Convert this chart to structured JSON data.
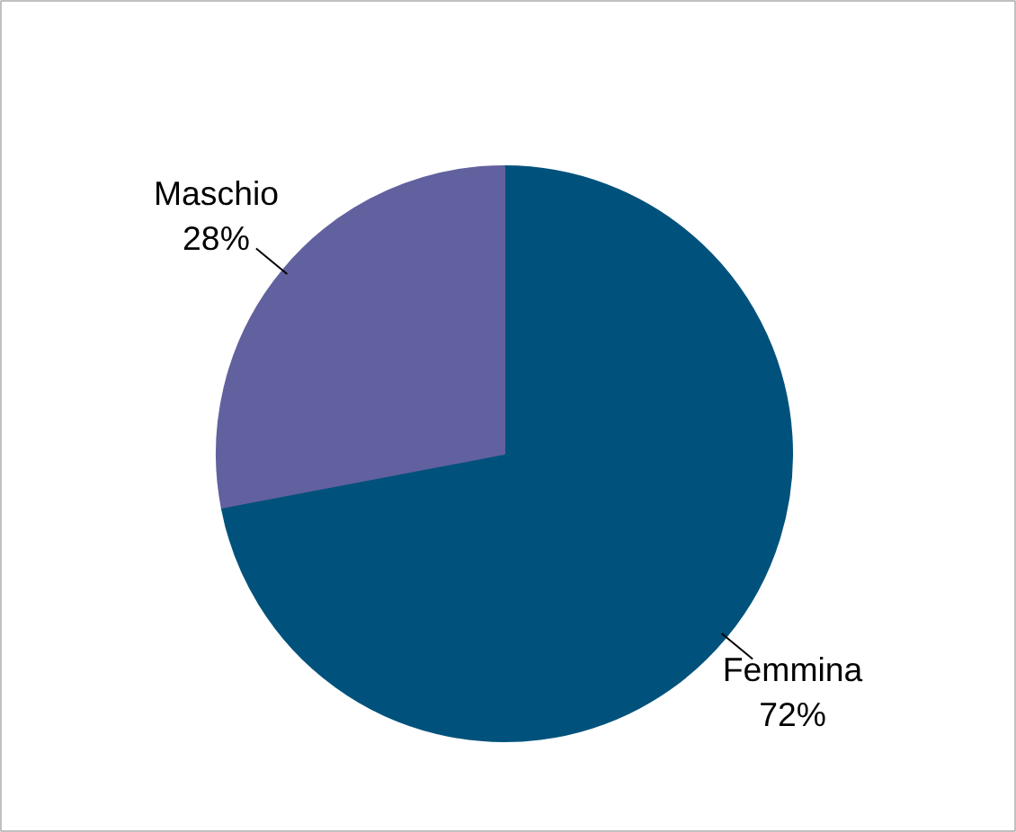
{
  "chart_data": {
    "type": "pie",
    "categories": [
      "Femmina",
      "Maschio"
    ],
    "values": [
      72,
      28
    ],
    "colors": [
      "#00527c",
      "#62619f"
    ],
    "value_labels": [
      "72%",
      "28%"
    ],
    "legend": false
  }
}
